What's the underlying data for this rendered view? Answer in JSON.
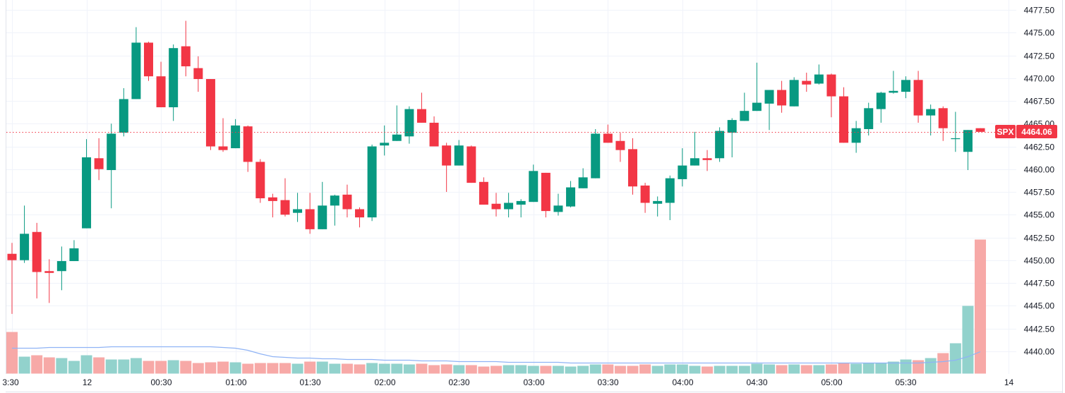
{
  "chart_data": {
    "type": "candlestick",
    "symbol": "SPX",
    "last_price": "4464.06",
    "ylim": [
      4437.5,
      4478.5
    ],
    "y_ticks": [
      "4477.50",
      "4475.00",
      "4472.50",
      "4470.00",
      "4467.50",
      "4465.00",
      "4462.50",
      "4460.00",
      "4457.50",
      "4455.00",
      "4452.50",
      "4450.00",
      "4447.50",
      "4445.00",
      "4442.50",
      "4440.00"
    ],
    "x_ticks": [
      {
        "label": "3:30",
        "index": 0
      },
      {
        "label": "12",
        "index": 6
      },
      {
        "label": "00:30",
        "index": 12
      },
      {
        "label": "01:00",
        "index": 18
      },
      {
        "label": "01:30",
        "index": 24
      },
      {
        "label": "02:00",
        "index": 30
      },
      {
        "label": "02:30",
        "index": 36
      },
      {
        "label": "03:00",
        "index": 42
      },
      {
        "label": "03:30",
        "index": 48
      },
      {
        "label": "04:00",
        "index": 54
      },
      {
        "label": "04:30",
        "index": 60
      },
      {
        "label": "05:00",
        "index": 66
      },
      {
        "label": "05:30",
        "index": 72
      },
      {
        "label": "14",
        "index": 80.3
      }
    ],
    "interval_minutes": 5,
    "ohlc": [
      [
        4450.7,
        4451.9,
        4444.1,
        4450.0
      ],
      [
        4450.0,
        4456.0,
        4449.7,
        4452.9
      ],
      [
        4453.1,
        4454.1,
        4445.8,
        4448.7
      ],
      [
        4448.8,
        4450.1,
        4445.3,
        4448.6
      ],
      [
        4448.8,
        4451.5,
        4446.7,
        4449.9
      ],
      [
        4449.9,
        4452.2,
        4449.9,
        4451.3
      ],
      [
        4453.5,
        4463.3,
        4453.5,
        4461.3
      ],
      [
        4461.2,
        4463.4,
        4458.8,
        4460.0
      ],
      [
        4459.9,
        4465.0,
        4455.7,
        4463.9
      ],
      [
        4464.0,
        4468.9,
        4463.6,
        4467.7
      ],
      [
        4467.7,
        4475.6,
        4467.7,
        4473.9
      ],
      [
        4473.9,
        4474.0,
        4469.7,
        4470.2
      ],
      [
        4470.2,
        4471.8,
        4466.8,
        4466.8
      ],
      [
        4466.8,
        4473.7,
        4465.3,
        4473.3
      ],
      [
        4473.5,
        4476.3,
        4470.2,
        4471.3
      ],
      [
        4471.1,
        4472.4,
        4468.5,
        4469.9
      ],
      [
        4469.9,
        4469.9,
        4462.1,
        4462.5
      ],
      [
        4462.5,
        4465.6,
        4461.9,
        4462.1
      ],
      [
        4462.3,
        4465.5,
        4462.3,
        4464.8
      ],
      [
        4464.7,
        4464.8,
        4459.7,
        4460.8
      ],
      [
        4460.8,
        4461.1,
        4456.3,
        4456.8
      ],
      [
        4456.9,
        4457.3,
        4454.7,
        4456.5
      ],
      [
        4456.6,
        4459.0,
        4454.8,
        4455.0
      ],
      [
        4455.2,
        4457.4,
        4454.2,
        4455.6
      ],
      [
        4455.6,
        4457.4,
        4452.9,
        4453.4
      ],
      [
        4453.4,
        4458.6,
        4453.4,
        4456.0
      ],
      [
        4456.0,
        4457.2,
        4453.8,
        4457.1
      ],
      [
        4457.2,
        4458.3,
        4454.7,
        4455.6
      ],
      [
        4455.6,
        4455.8,
        4453.6,
        4454.7
      ],
      [
        4454.7,
        4462.7,
        4454.3,
        4462.5
      ],
      [
        4462.6,
        4464.8,
        4461.5,
        4462.9
      ],
      [
        4463.1,
        4467.0,
        4463.1,
        4463.8
      ],
      [
        4463.6,
        4466.9,
        4462.8,
        4466.6
      ],
      [
        4466.6,
        4468.4,
        4465.1,
        4465.1
      ],
      [
        4465.1,
        4465.8,
        4462.5,
        4462.5
      ],
      [
        4462.6,
        4462.9,
        4457.5,
        4460.4
      ],
      [
        4460.4,
        4463.2,
        4460.4,
        4462.6
      ],
      [
        4462.5,
        4462.6,
        4458.5,
        4458.5
      ],
      [
        4458.6,
        4459.1,
        4456.1,
        4456.1
      ],
      [
        4456.2,
        4457.4,
        4454.8,
        4455.6
      ],
      [
        4455.6,
        4457.4,
        4454.7,
        4456.3
      ],
      [
        4456.1,
        4456.7,
        4454.7,
        4456.5
      ],
      [
        4456.4,
        4460.5,
        4456.4,
        4459.8
      ],
      [
        4459.6,
        4459.6,
        4454.7,
        4455.4
      ],
      [
        4455.3,
        4457.3,
        4454.9,
        4456.0
      ],
      [
        4455.9,
        4458.7,
        4455.8,
        4458.0
      ],
      [
        4457.9,
        4460.1,
        4457.9,
        4459.1
      ],
      [
        4459.0,
        4464.4,
        4459.0,
        4463.9
      ],
      [
        4463.9,
        4464.9,
        4462.9,
        4462.9
      ],
      [
        4463.1,
        4464.0,
        4460.8,
        4462.1
      ],
      [
        4462.2,
        4463.4,
        4457.2,
        4458.1
      ],
      [
        4458.2,
        4458.5,
        4455.2,
        4456.3
      ],
      [
        4456.2,
        4457.0,
        4454.8,
        4456.5
      ],
      [
        4456.3,
        4459.3,
        4454.4,
        4459.0
      ],
      [
        4458.9,
        4462.3,
        4458.1,
        4460.4
      ],
      [
        4460.4,
        4464.1,
        4460.4,
        4461.2
      ],
      [
        4461.2,
        4462.1,
        4459.8,
        4461.0
      ],
      [
        4461.2,
        4464.6,
        4460.8,
        4464.2
      ],
      [
        4464.0,
        4465.6,
        4461.3,
        4465.4
      ],
      [
        4465.3,
        4468.4,
        4465.3,
        4466.4
      ],
      [
        4466.4,
        4471.7,
        4466.4,
        4467.3
      ],
      [
        4467.2,
        4468.7,
        4464.3,
        4468.7
      ],
      [
        4468.7,
        4469.7,
        4466.2,
        4467.0
      ],
      [
        4466.9,
        4470.1,
        4466.9,
        4469.8
      ],
      [
        4469.7,
        4470.6,
        4468.5,
        4469.3
      ],
      [
        4469.4,
        4471.5,
        4469.3,
        4470.4
      ],
      [
        4470.4,
        4470.5,
        4465.7,
        4468.0
      ],
      [
        4468.0,
        4469.0,
        4462.9,
        4462.9
      ],
      [
        4462.9,
        4465.3,
        4461.8,
        4464.5
      ],
      [
        4464.4,
        4467.3,
        4463.7,
        4466.7
      ],
      [
        4466.6,
        4468.5,
        4465.1,
        4468.4
      ],
      [
        4468.4,
        4470.8,
        4468.3,
        4468.6
      ],
      [
        4468.5,
        4470.2,
        4467.8,
        4469.8
      ],
      [
        4469.8,
        4470.8,
        4465.1,
        4465.9
      ],
      [
        4465.9,
        4467.1,
        4463.7,
        4466.6
      ],
      [
        4466.7,
        4466.9,
        4463.1,
        4464.5
      ],
      [
        4463.3,
        4466.3,
        4461.9,
        4463.4
      ],
      [
        4461.9,
        4464.3,
        4459.9,
        4464.3
      ],
      [
        4464.5,
        4464.5,
        4464.1,
        4464.1
      ]
    ],
    "volume": [
      59,
      24,
      26,
      23,
      22,
      18,
      26,
      23,
      20,
      20,
      22,
      18,
      18,
      19,
      18,
      15,
      16,
      17,
      16,
      14,
      15,
      15,
      15,
      14,
      17,
      17,
      14,
      14,
      13,
      15,
      14,
      14,
      13,
      14,
      12,
      13,
      12,
      12,
      10,
      11,
      12,
      12,
      11,
      11,
      11,
      10,
      11,
      13,
      13,
      11,
      11,
      13,
      11,
      13,
      13,
      11,
      10,
      11,
      11,
      11,
      14,
      13,
      12,
      13,
      12,
      12,
      13,
      15,
      14,
      15,
      15,
      17,
      20,
      19,
      22,
      29,
      43,
      96,
      190
    ],
    "volume_ma": [
      36,
      36,
      36,
      37,
      37,
      37,
      37,
      37,
      38,
      38,
      38,
      38,
      38,
      38,
      38,
      38,
      38,
      37,
      36,
      33,
      28,
      24,
      23,
      22,
      22,
      21,
      21,
      20,
      20,
      20,
      19,
      19,
      19,
      18,
      18,
      18,
      17,
      17,
      17,
      17,
      16,
      16,
      16,
      16,
      16,
      15,
      15,
      15,
      15,
      15,
      15,
      15,
      15,
      15,
      15,
      15,
      15,
      15,
      15,
      15,
      15,
      15,
      15,
      15,
      15,
      15,
      15,
      15,
      15,
      15,
      15,
      15,
      15,
      15,
      16,
      17,
      19,
      24,
      31
    ],
    "colors": {
      "up": "#089981",
      "down": "#F23645",
      "vol_up": "#92D2CC",
      "vol_down": "#F7A9A7",
      "ma": "#8FB3F5",
      "grid": "#F0F3FA"
    }
  }
}
